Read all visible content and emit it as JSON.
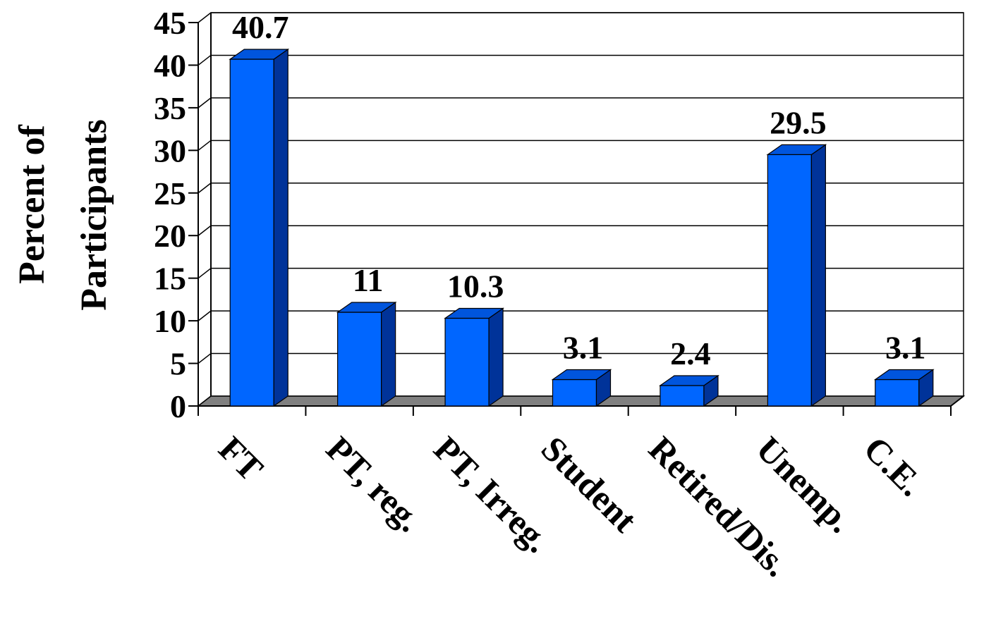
{
  "chart_data": {
    "type": "bar",
    "title": "",
    "xlabel": "",
    "ylabel_lines": [
      "Percent of",
      "Participants"
    ],
    "categories": [
      "FT",
      "PT, reg.",
      "PT, Irreg.",
      "Student",
      "Retired/Dis.",
      "Unemp.",
      "C.E."
    ],
    "values": [
      40.7,
      11,
      10.3,
      3.1,
      2.4,
      29.5,
      3.1
    ],
    "value_labels": [
      "40.7",
      "11",
      "10.3",
      "3.1",
      "2.4",
      "29.5",
      "3.1"
    ],
    "ylim": [
      0,
      45
    ],
    "yticks": [
      0,
      5,
      10,
      15,
      20,
      25,
      30,
      35,
      40,
      45
    ],
    "ytick_labels": [
      "0",
      "5",
      "10",
      "15",
      "20",
      "25",
      "30",
      "35",
      "40",
      "45"
    ],
    "grid": true,
    "legend": "none",
    "three_d": true,
    "colors": {
      "bar_front": "#0066ff",
      "bar_side": "#003399",
      "bar_top": "#0055dd",
      "floor": "#808080",
      "grid": "#000000",
      "wall": "#ffffff"
    }
  }
}
